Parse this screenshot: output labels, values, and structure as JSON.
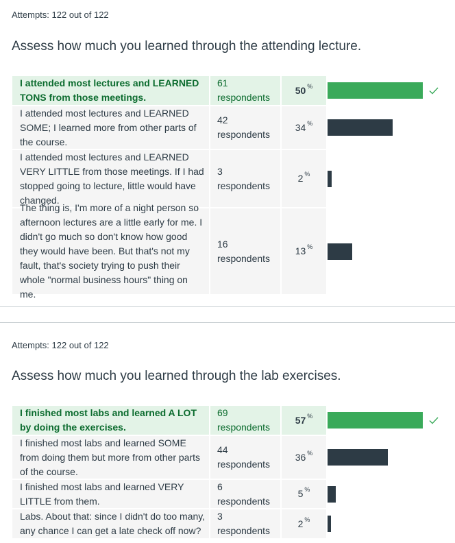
{
  "quizzes": [
    {
      "attempts": "Attempts: 122 out of 122",
      "question": "Assess how much you learned through the attending lecture.",
      "answers": [
        {
          "text": "I attended most lectures and LEARNED TONS from those meetings.",
          "respondents": "61 respondents",
          "percent": "50",
          "value": 50,
          "correct": true
        },
        {
          "text": "I attended most lectures and LEARNED SOME; I learned more from other parts of the course.",
          "respondents": "42 respondents",
          "percent": "34",
          "value": 34,
          "correct": false
        },
        {
          "text": "I attended most lectures and LEARNED VERY LITTLE from those meetings. If I had stopped going to lecture, little would have changed.",
          "respondents": "3 respondents",
          "percent": "2",
          "value": 2,
          "correct": false
        },
        {
          "text": "The thing is, I'm more of a night person so afternoon lectures are a little early for me. I didn't go much so don't know how good they would have been. But that's not my fault, that's society trying to push their whole \"normal business hours\" thing on me.",
          "respondents": "16 respondents",
          "percent": "13",
          "value": 13,
          "correct": false
        }
      ]
    },
    {
      "attempts": "Attempts: 122 out of 122",
      "question": "Assess how much you learned through the lab exercises.",
      "answers": [
        {
          "text": "I finished most labs and learned A LOT by doing the exercises.",
          "respondents": "69 respondents",
          "percent": "57",
          "value": 57,
          "correct": true
        },
        {
          "text": "I finished most labs and learned SOME from doing them but more from other parts of the course.",
          "respondents": "44 respondents",
          "percent": "36",
          "value": 36,
          "correct": false
        },
        {
          "text": "I finished most labs and learned VERY LITTLE from them.",
          "respondents": "6 respondents",
          "percent": "5",
          "value": 5,
          "correct": false
        },
        {
          "text": "Labs. About that: since I didn't do too many, any chance I can get a late check off now?",
          "respondents": "3 respondents",
          "percent": "2",
          "value": 2,
          "correct": false
        }
      ]
    }
  ],
  "percent_sign": "%",
  "colors": {
    "correct_bar": "#3aaa5a",
    "bar": "#2d3b45",
    "correct_bg": "#e3f3e7",
    "cell_bg": "#f5f5f5"
  },
  "icons": {
    "correct": "check-icon"
  }
}
